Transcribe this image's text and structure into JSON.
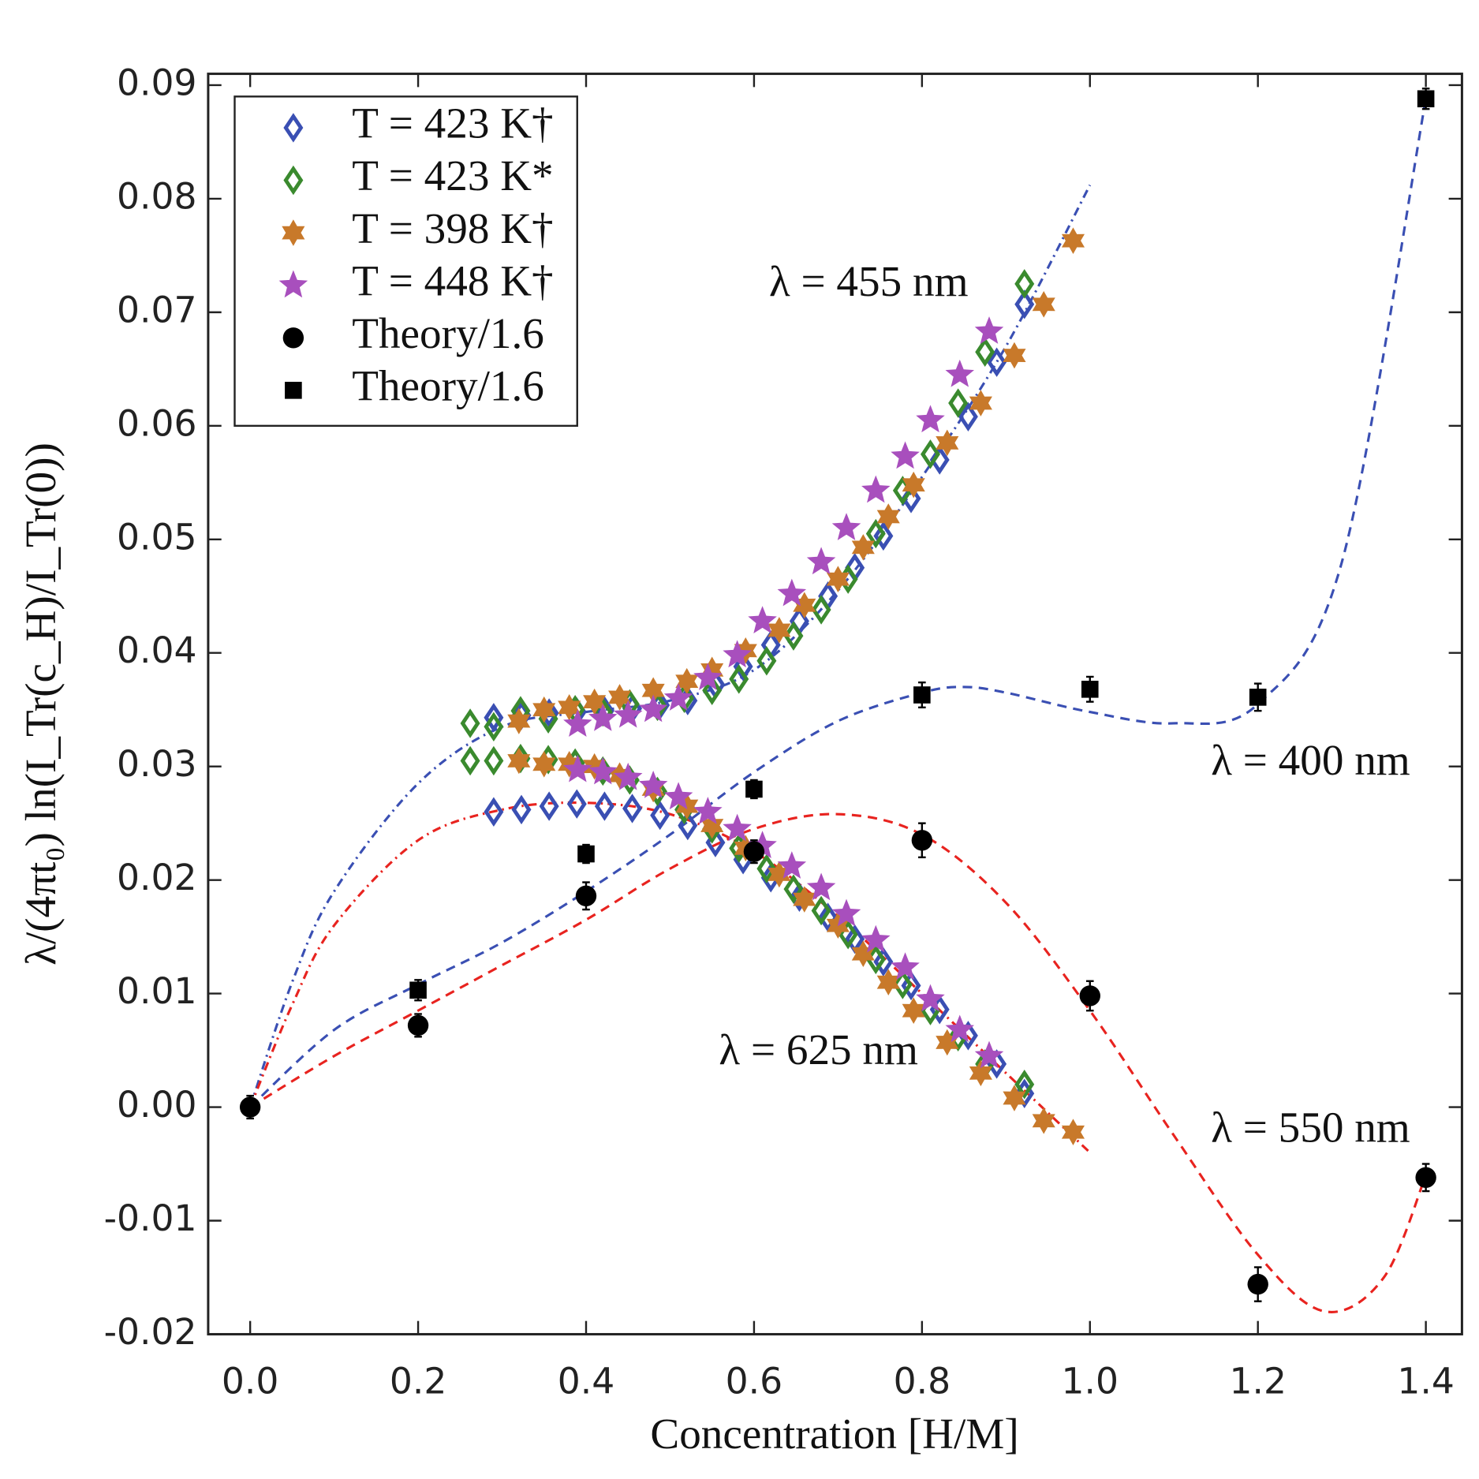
{
  "chart_data": {
    "type": "scatter",
    "xlabel": "Concentration [H/M]",
    "ylabel": "λ/(4πt₀) ln(I_Tr(c_H)/I_Tr(0))",
    "xlim": [
      -0.05,
      1.443
    ],
    "ylim": [
      -0.02,
      0.091
    ],
    "xticks": [
      {
        "value": 0,
        "label": "0.0"
      },
      0.2,
      0.4,
      0.6,
      0.8,
      {
        "value": 1,
        "label": "1.0"
      },
      1.2,
      1.4
    ],
    "yticks": [
      {
        "value": -0.02,
        "label": "-0.02"
      },
      -0.01,
      {
        "value": 0,
        "label": "0.00"
      },
      0.01,
      0.02,
      0.03,
      0.04,
      0.05,
      0.06,
      0.07,
      0.08,
      0.09
    ],
    "legend": "upper left",
    "annotations": [
      "λ = 455 nm",
      "λ = 400 nm",
      "λ = 625 nm",
      "λ = 550 nm"
    ],
    "series": [
      {
        "name": "T = 423 K†",
        "color": "#3a4fb3",
        "marker": "diamond",
        "x": [
          0.29,
          0.323,
          0.356,
          0.389,
          0.422,
          0.455,
          0.488,
          0.521,
          0.554,
          0.587,
          0.62,
          0.654,
          0.688,
          0.72,
          0.754,
          0.787,
          0.821,
          0.855,
          0.889,
          0.922,
          0.29,
          0.323,
          0.356,
          0.389,
          0.422,
          0.455,
          0.488,
          0.521,
          0.554,
          0.587,
          0.62,
          0.654,
          0.688,
          0.72,
          0.754,
          0.787,
          0.821,
          0.855,
          0.889,
          0.922
        ],
        "values": [
          0.0343,
          0.0345,
          0.0347,
          0.0348,
          0.0349,
          0.0351,
          0.0354,
          0.0358,
          0.0372,
          0.0388,
          0.0407,
          0.0428,
          0.045,
          0.0475,
          0.0503,
          0.0536,
          0.057,
          0.0608,
          0.0656,
          0.0707,
          0.026,
          0.0262,
          0.0265,
          0.0267,
          0.0265,
          0.0263,
          0.0257,
          0.0248,
          0.0233,
          0.0218,
          0.0202,
          0.0185,
          0.0167,
          0.0148,
          0.0128,
          0.0107,
          0.0086,
          0.0063,
          0.0038,
          0.0012
        ]
      },
      {
        "name": "T = 423 K*",
        "color": "#3a8a2e",
        "marker": "diamond",
        "x": [
          0.262,
          0.29,
          0.322,
          0.355,
          0.387,
          0.42,
          0.452,
          0.485,
          0.517,
          0.55,
          0.582,
          0.615,
          0.647,
          0.68,
          0.712,
          0.745,
          0.777,
          0.81,
          0.843,
          0.875,
          0.922,
          0.262,
          0.29,
          0.322,
          0.355,
          0.387,
          0.42,
          0.452,
          0.485,
          0.517,
          0.55,
          0.582,
          0.615,
          0.647,
          0.68,
          0.712,
          0.745,
          0.777,
          0.81,
          0.843,
          0.875,
          0.922
        ],
        "values": [
          0.0338,
          0.0335,
          0.0349,
          0.0342,
          0.035,
          0.0348,
          0.0355,
          0.0353,
          0.036,
          0.0367,
          0.0377,
          0.0393,
          0.0415,
          0.0438,
          0.0465,
          0.0505,
          0.0543,
          0.0575,
          0.062,
          0.0665,
          0.0725,
          0.0305,
          0.0305,
          0.0307,
          0.0306,
          0.0303,
          0.0296,
          0.0288,
          0.0278,
          0.0262,
          0.0245,
          0.0228,
          0.021,
          0.0192,
          0.0173,
          0.0152,
          0.013,
          0.0108,
          0.0085,
          0.0062,
          0.0038,
          0.002
        ]
      },
      {
        "name": "T = 398 K†",
        "color": "#c8792a",
        "marker": "star6",
        "x": [
          0.32,
          0.35,
          0.38,
          0.41,
          0.44,
          0.48,
          0.52,
          0.55,
          0.59,
          0.63,
          0.66,
          0.7,
          0.73,
          0.76,
          0.79,
          0.83,
          0.87,
          0.91,
          0.945,
          0.98,
          0.32,
          0.35,
          0.38,
          0.41,
          0.44,
          0.48,
          0.52,
          0.55,
          0.59,
          0.63,
          0.66,
          0.7,
          0.73,
          0.76,
          0.79,
          0.83,
          0.87,
          0.91,
          0.945,
          0.98
        ],
        "values": [
          0.034,
          0.035,
          0.0352,
          0.0357,
          0.0361,
          0.0367,
          0.0375,
          0.0385,
          0.0402,
          0.042,
          0.0442,
          0.0465,
          0.0493,
          0.052,
          0.0548,
          0.0585,
          0.062,
          0.0662,
          0.0707,
          0.0763,
          0.0305,
          0.0302,
          0.0302,
          0.03,
          0.0292,
          0.028,
          0.0265,
          0.0248,
          0.0228,
          0.0205,
          0.0183,
          0.016,
          0.0135,
          0.011,
          0.0085,
          0.0057,
          0.003,
          0.0008,
          -0.0012,
          -0.0022
        ]
      },
      {
        "name": "T = 448 K†",
        "color": "#a84fbd",
        "marker": "star5",
        "x": [
          0.39,
          0.42,
          0.45,
          0.48,
          0.51,
          0.545,
          0.58,
          0.61,
          0.645,
          0.68,
          0.71,
          0.745,
          0.78,
          0.81,
          0.845,
          0.88,
          0.39,
          0.42,
          0.45,
          0.48,
          0.51,
          0.545,
          0.58,
          0.61,
          0.645,
          0.68,
          0.71,
          0.745,
          0.78,
          0.81,
          0.845,
          0.88
        ],
        "values": [
          0.0337,
          0.0342,
          0.0345,
          0.035,
          0.036,
          0.0378,
          0.0398,
          0.0428,
          0.0452,
          0.048,
          0.051,
          0.0543,
          0.0573,
          0.0605,
          0.0645,
          0.0683,
          0.0297,
          0.0295,
          0.029,
          0.0283,
          0.0273,
          0.026,
          0.0245,
          0.023,
          0.0212,
          0.0193,
          0.017,
          0.0147,
          0.0123,
          0.0095,
          0.0068,
          0.0045
        ]
      },
      {
        "name": "Theory/1.6",
        "color": "#000000",
        "marker": "circle",
        "x": [
          0,
          0.2,
          0.4,
          0.6,
          0.8,
          1,
          1.2,
          1.4
        ],
        "values": [
          0,
          0.0072,
          0.0186,
          0.0225,
          0.0235,
          0.0098,
          -0.0156,
          -0.0062
        ],
        "errors": [
          0.001,
          0.001,
          0.0012,
          0.001,
          0.0015,
          0.0013,
          0.0015,
          0.0012
        ]
      },
      {
        "name": "Theory/1.6",
        "color": "#000000",
        "marker": "square",
        "x": [
          0.2,
          0.4,
          0.6,
          0.8,
          1,
          1.2,
          1.4
        ],
        "values": [
          0.0103,
          0.0223,
          0.028,
          0.0363,
          0.0368,
          0.0361,
          0.0888
        ],
        "errors": [
          0.0009,
          0.0008,
          0.0008,
          0.0011,
          0.0011,
          0.0012,
          0.0009
        ]
      }
    ],
    "fits": [
      {
        "color": "#3a4fb3",
        "style": "dashed",
        "x": [
          0,
          0.1,
          0.2,
          0.3,
          0.4,
          0.5,
          0.6,
          0.7,
          0.8,
          0.85,
          0.9,
          1,
          1.1,
          1.2,
          1.3,
          1.4
        ],
        "values": [
          0,
          0.0068,
          0.0108,
          0.0145,
          0.019,
          0.024,
          0.0295,
          0.034,
          0.0365,
          0.037,
          0.0365,
          0.0348,
          0.0338,
          0.0355,
          0.048,
          0.0888
        ]
      },
      {
        "color": "#e8231f",
        "style": "dashed",
        "x": [
          0,
          0.1,
          0.2,
          0.3,
          0.4,
          0.5,
          0.6,
          0.7,
          0.8,
          0.9,
          1,
          1.1,
          1.2,
          1.28,
          1.35,
          1.4
        ],
        "values": [
          0,
          0.0045,
          0.0085,
          0.0125,
          0.0165,
          0.021,
          0.0245,
          0.0258,
          0.024,
          0.018,
          0.0085,
          -0.0025,
          -0.013,
          -0.018,
          -0.015,
          -0.006
        ]
      },
      {
        "color": "#3a4fb3",
        "style": "dashdot",
        "x": [
          0,
          0.05,
          0.1,
          0.2,
          0.3,
          0.4,
          0.5,
          0.6,
          0.7,
          0.8,
          0.9,
          1
        ],
        "values": [
          0,
          0.011,
          0.019,
          0.0285,
          0.0335,
          0.0348,
          0.0358,
          0.0385,
          0.0455,
          0.0555,
          0.067,
          0.0812
        ]
      },
      {
        "color": "#e8231f",
        "style": "dashdot",
        "x": [
          0,
          0.05,
          0.1,
          0.2,
          0.3,
          0.4,
          0.5,
          0.6,
          0.7,
          0.8,
          0.9,
          1
        ],
        "values": [
          0,
          0.009,
          0.016,
          0.0235,
          0.0262,
          0.0268,
          0.0258,
          0.0225,
          0.0168,
          0.01,
          0.003,
          -0.004
        ]
      }
    ]
  }
}
